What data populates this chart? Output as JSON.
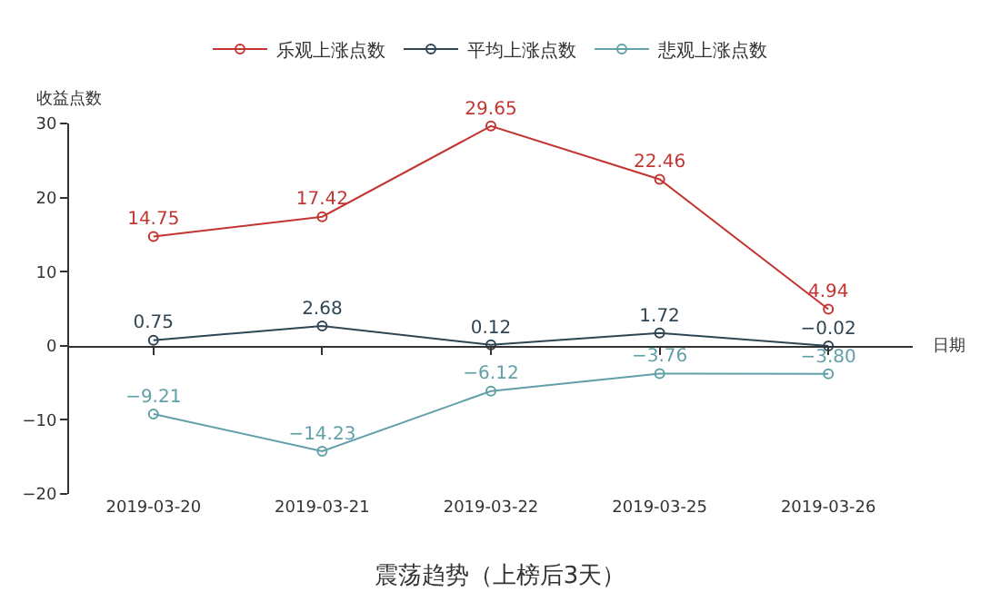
{
  "chart_data": {
    "type": "line",
    "title": "震荡趋势（上榜后3天）",
    "ylabel": "收益点数",
    "xlabel": "日期",
    "categories": [
      "2019-03-20",
      "2019-03-21",
      "2019-03-22",
      "2019-03-25",
      "2019-03-26"
    ],
    "series": [
      {
        "name": "乐观上涨点数",
        "color": "#c23531",
        "values": [
          14.75,
          17.42,
          29.65,
          22.46,
          4.94
        ],
        "value_labels": [
          "14.75",
          "17.42",
          "29.65",
          "22.46",
          "4.94"
        ]
      },
      {
        "name": "平均上涨点数",
        "color": "#2f4554",
        "values": [
          0.75,
          2.68,
          0.12,
          1.72,
          -0.02
        ],
        "value_labels": [
          "0.75",
          "2.68",
          "0.12",
          "1.72",
          "−0.02"
        ]
      },
      {
        "name": "悲观上涨点数",
        "color": "#61a0a8",
        "values": [
          -9.21,
          -14.23,
          -6.12,
          -3.76,
          -3.8
        ],
        "value_labels": [
          "−9.21",
          "−14.23",
          "−6.12",
          "−3.76",
          "−3.80"
        ]
      }
    ],
    "ylim": [
      -20,
      30
    ],
    "yticks": [
      -20,
      -10,
      0,
      10,
      20,
      30
    ],
    "legend": "top",
    "marker": "circle",
    "line_style": "solid"
  }
}
